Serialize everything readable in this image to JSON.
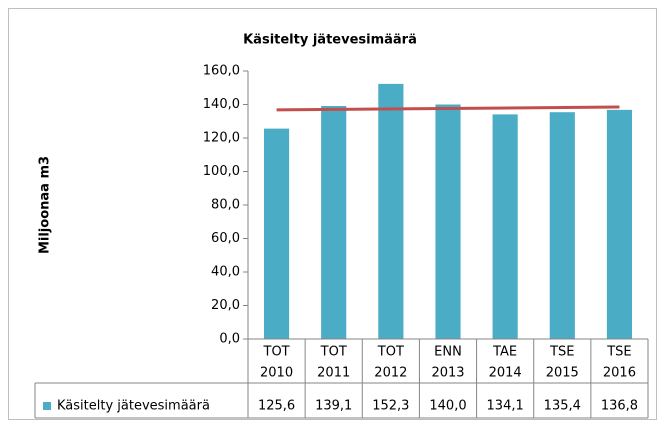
{
  "chart_data": {
    "type": "bar",
    "title": "Käsitelty jätevesimäärä",
    "y_label": "Miljoonaa m3",
    "categories": [
      [
        "TOT",
        "2010"
      ],
      [
        "TOT",
        "2011"
      ],
      [
        "TOT",
        "2012"
      ],
      [
        "ENN",
        "2013"
      ],
      [
        "TAE",
        "2014"
      ],
      [
        "TSE",
        "2015"
      ],
      [
        "TSE",
        "2016"
      ]
    ],
    "series": [
      {
        "name": "Käsitelty jätevesimäärä",
        "color": "#4bacc6",
        "values": [
          125.6,
          139.1,
          152.3,
          140.0,
          134.1,
          135.4,
          136.8
        ],
        "value_labels": [
          "125,6",
          "139,1",
          "152,3",
          "140,0",
          "134,1",
          "135,4",
          "136,8"
        ]
      }
    ],
    "trendline": {
      "type": "linear",
      "color": "#c0504d"
    },
    "ylim": [
      0,
      160
    ],
    "yticks": [
      {
        "value": 0,
        "label": "0,0"
      },
      {
        "value": 20,
        "label": "20,0"
      },
      {
        "value": 40,
        "label": "40,0"
      },
      {
        "value": 60,
        "label": "60,0"
      },
      {
        "value": 80,
        "label": "80,0"
      },
      {
        "value": 100,
        "label": "100,0"
      },
      {
        "value": 120,
        "label": "120,0"
      },
      {
        "value": 140,
        "label": "140,0"
      },
      {
        "value": 160,
        "label": "160,0"
      }
    ],
    "grid": false,
    "data_table": true
  }
}
